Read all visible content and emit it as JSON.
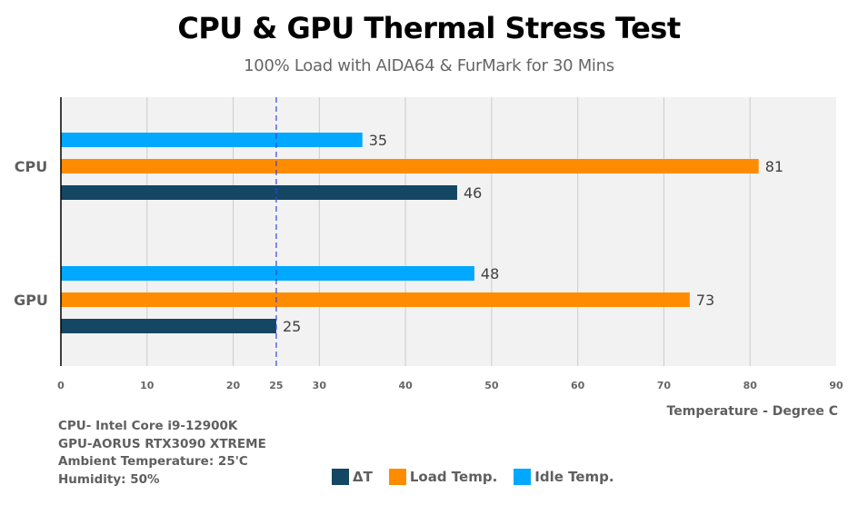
{
  "chart_data": {
    "type": "bar",
    "orientation": "horizontal",
    "title": "CPU & GPU Thermal Stress Test",
    "subtitle": "100% Load with AIDA64 & FurMark for 30 Mins",
    "xlabel": "Temperature - Degree C",
    "ylabel": "",
    "categories": [
      "CPU",
      "GPU"
    ],
    "series": [
      {
        "name": "Idle Temp.",
        "color": "#00A8FF",
        "values": [
          35,
          48
        ]
      },
      {
        "name": "Load Temp.",
        "color": "#FF8C00",
        "values": [
          81,
          73
        ]
      },
      {
        "name": "ΔT",
        "color": "#134763",
        "values": [
          46,
          25
        ]
      }
    ],
    "xlim": [
      0,
      90
    ],
    "xticks": [
      "0",
      "10",
      "20",
      "25",
      "30",
      "40",
      "50",
      "60",
      "70",
      "80",
      "90"
    ],
    "reference_line": {
      "value": 25,
      "style": "dashed",
      "color": "#3344DD"
    },
    "grid": true,
    "legend": {
      "position": "bottom",
      "order": [
        "ΔT",
        "Load Temp.",
        "Idle Temp."
      ]
    }
  },
  "notes": [
    "CPU- Intel Core i9-12900K",
    "GPU-AORUS RTX3090 XTREME",
    "Ambient Temperature: 25'C",
    "Humidity: 50%"
  ]
}
